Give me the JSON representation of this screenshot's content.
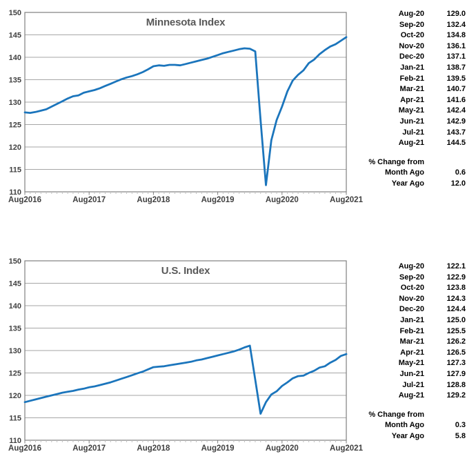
{
  "accent_line_color": "#1B75BC",
  "gridline_color": "#A6A6A6",
  "plot_border_color": "#7F7F7F",
  "minor_tick_color": "#BFBFBF",
  "title_color": "#595959",
  "axis_label_color": "#404040",
  "chart_data": [
    {
      "type": "line",
      "title": "Minnesota Index",
      "x_tick_labels": [
        "Aug2016",
        "Aug2017",
        "Aug2018",
        "Aug2019",
        "Aug2020",
        "Aug2021"
      ],
      "x_tick_indices": [
        0,
        12,
        24,
        36,
        48,
        60
      ],
      "ylim": [
        110,
        150
      ],
      "ytick_step": 5,
      "grid": true,
      "legend": "none",
      "line_color": "#1B75BC",
      "values": [
        127.7,
        127.6,
        127.8,
        128.1,
        128.4,
        129.0,
        129.6,
        130.2,
        130.8,
        131.3,
        131.5,
        132.1,
        132.4,
        132.7,
        133.1,
        133.6,
        134.1,
        134.6,
        135.1,
        135.5,
        135.8,
        136.2,
        136.7,
        137.3,
        138.0,
        138.2,
        138.1,
        138.3,
        138.3,
        138.2,
        138.5,
        138.8,
        139.1,
        139.4,
        139.7,
        140.1,
        140.5,
        140.9,
        141.2,
        141.5,
        141.8,
        142.0,
        141.9,
        141.3,
        126.0,
        111.5,
        121.5,
        126.0,
        129.0,
        132.4,
        134.8,
        136.1,
        137.1,
        138.7,
        139.5,
        140.7,
        141.6,
        142.4,
        142.9,
        143.7,
        144.5
      ]
    },
    {
      "type": "line",
      "title": "U.S. Index",
      "x_tick_labels": [
        "Aug2016",
        "Aug2017",
        "Aug2018",
        "Aug2019",
        "Aug2020",
        "Aug2021"
      ],
      "x_tick_indices": [
        0,
        12,
        24,
        36,
        48,
        60
      ],
      "ylim": [
        110,
        150
      ],
      "ytick_step": 5,
      "grid": true,
      "legend": "none",
      "line_color": "#1B75BC",
      "values": [
        118.5,
        118.8,
        119.1,
        119.4,
        119.7,
        120.0,
        120.3,
        120.6,
        120.8,
        121.0,
        121.3,
        121.5,
        121.8,
        122.0,
        122.3,
        122.6,
        122.9,
        123.3,
        123.7,
        124.1,
        124.5,
        124.9,
        125.3,
        125.8,
        126.3,
        126.4,
        126.5,
        126.7,
        126.9,
        127.1,
        127.3,
        127.5,
        127.8,
        128.0,
        128.3,
        128.6,
        128.9,
        129.2,
        129.5,
        129.8,
        130.2,
        130.7,
        131.1,
        123.5,
        115.9,
        118.5,
        120.2,
        120.9,
        122.1,
        122.9,
        123.8,
        124.3,
        124.4,
        125.0,
        125.5,
        126.2,
        126.5,
        127.3,
        127.9,
        128.8,
        129.2
      ]
    }
  ],
  "side_panels": [
    {
      "rows": [
        {
          "m": "Aug-20",
          "v": "129.0"
        },
        {
          "m": "Sep-20",
          "v": "132.4"
        },
        {
          "m": "Oct-20",
          "v": "134.8"
        },
        {
          "m": "Nov-20",
          "v": "136.1"
        },
        {
          "m": "Dec-20",
          "v": "137.1"
        },
        {
          "m": "Jan-21",
          "v": "138.7"
        },
        {
          "m": "Feb-21",
          "v": "139.5"
        },
        {
          "m": "Mar-21",
          "v": "140.7"
        },
        {
          "m": "Apr-21",
          "v": "141.6"
        },
        {
          "m": "May-21",
          "v": "142.4"
        },
        {
          "m": "Jun-21",
          "v": "142.9"
        },
        {
          "m": "Jul-21",
          "v": "143.7"
        },
        {
          "m": "Aug-21",
          "v": "144.5"
        }
      ],
      "pct_header": "% Change from",
      "pct_rows": [
        {
          "m": "Month Ago",
          "v": "0.6"
        },
        {
          "m": "Year Ago",
          "v": "12.0"
        }
      ]
    },
    {
      "rows": [
        {
          "m": "Aug-20",
          "v": "122.1"
        },
        {
          "m": "Sep-20",
          "v": "122.9"
        },
        {
          "m": "Oct-20",
          "v": "123.8"
        },
        {
          "m": "Nov-20",
          "v": "124.3"
        },
        {
          "m": "Dec-20",
          "v": "124.4"
        },
        {
          "m": "Jan-21",
          "v": "125.0"
        },
        {
          "m": "Feb-21",
          "v": "125.5"
        },
        {
          "m": "Mar-21",
          "v": "126.2"
        },
        {
          "m": "Apr-21",
          "v": "126.5"
        },
        {
          "m": "May-21",
          "v": "127.3"
        },
        {
          "m": "Jun-21",
          "v": "127.9"
        },
        {
          "m": "Jul-21",
          "v": "128.8"
        },
        {
          "m": "Aug-21",
          "v": "129.2"
        }
      ],
      "pct_header": "% Change from",
      "pct_rows": [
        {
          "m": "Month Ago",
          "v": "0.3"
        },
        {
          "m": "Year Ago",
          "v": "5.8"
        }
      ]
    }
  ]
}
